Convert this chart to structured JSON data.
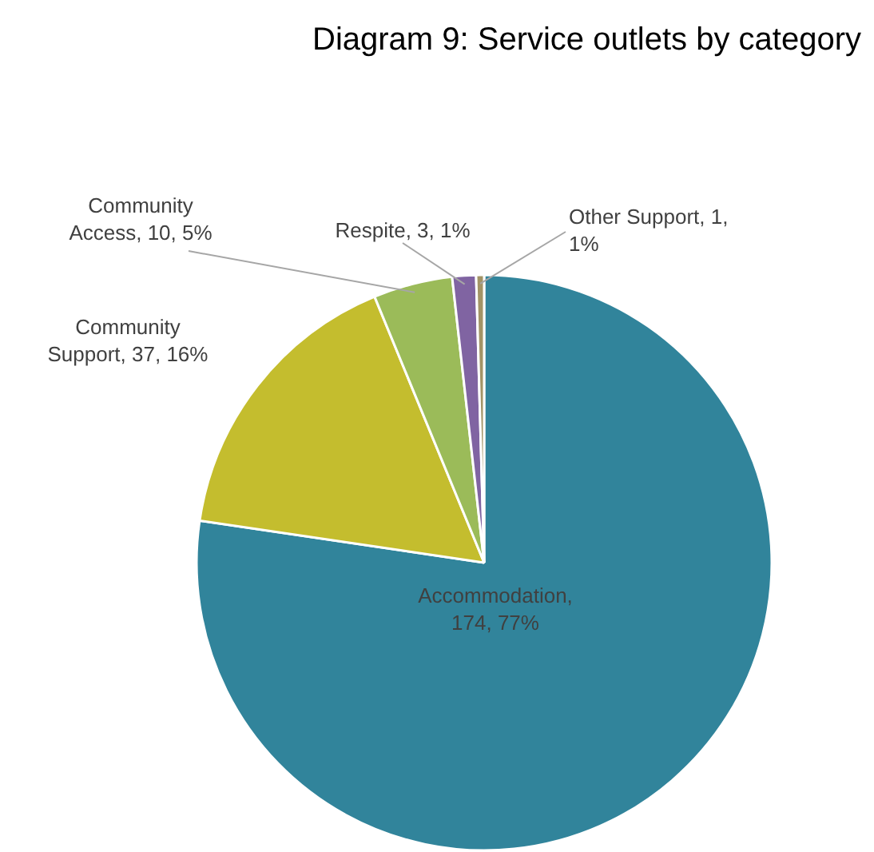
{
  "chart_data": {
    "type": "pie",
    "title": "Diagram 9: Service outlets by category",
    "categories": [
      "Accommodation",
      "Community Support",
      "Community Access",
      "Respite",
      "Other Support"
    ],
    "values": [
      174,
      37,
      10,
      3,
      1
    ],
    "colors": [
      "#31849b",
      "#c4bd2e",
      "#9bbb59",
      "#8064a2",
      "#a39466"
    ],
    "value_labels": [
      ", 174, 77%",
      ", 37, 16%",
      ", 10, 5%",
      ", 3, 1%",
      ", 1, 1%"
    ],
    "legend": false
  }
}
